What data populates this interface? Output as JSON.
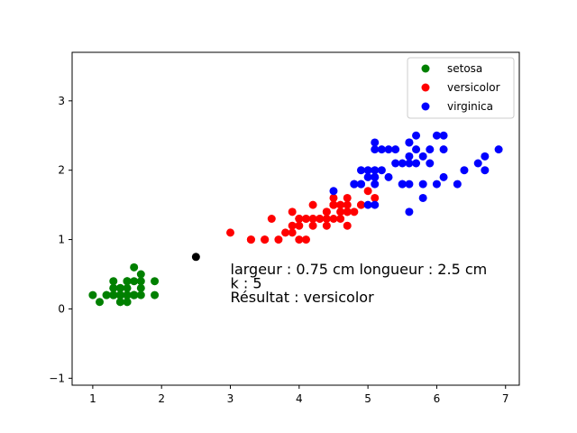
{
  "chart_data": {
    "type": "scatter",
    "title": "",
    "xlabel": "",
    "ylabel": "",
    "xlim": [
      0.7,
      7.2
    ],
    "ylim": [
      -1.1,
      3.7
    ],
    "xticks": [
      1,
      2,
      3,
      4,
      5,
      6,
      7
    ],
    "yticks": [
      -1,
      0,
      1,
      2,
      3
    ],
    "grid": false,
    "legend_position": "top-right",
    "series": [
      {
        "name": "setosa",
        "color": "#008000",
        "points": [
          [
            1.4,
            0.2
          ],
          [
            1.4,
            0.2
          ],
          [
            1.3,
            0.2
          ],
          [
            1.5,
            0.2
          ],
          [
            1.4,
            0.2
          ],
          [
            1.7,
            0.4
          ],
          [
            1.4,
            0.3
          ],
          [
            1.5,
            0.2
          ],
          [
            1.4,
            0.2
          ],
          [
            1.5,
            0.1
          ],
          [
            1.5,
            0.2
          ],
          [
            1.6,
            0.2
          ],
          [
            1.4,
            0.1
          ],
          [
            1.1,
            0.1
          ],
          [
            1.2,
            0.2
          ],
          [
            1.5,
            0.4
          ],
          [
            1.3,
            0.4
          ],
          [
            1.4,
            0.3
          ],
          [
            1.7,
            0.3
          ],
          [
            1.5,
            0.3
          ],
          [
            1.7,
            0.2
          ],
          [
            1.5,
            0.4
          ],
          [
            1.0,
            0.2
          ],
          [
            1.7,
            0.5
          ],
          [
            1.9,
            0.2
          ],
          [
            1.6,
            0.2
          ],
          [
            1.6,
            0.4
          ],
          [
            1.5,
            0.2
          ],
          [
            1.4,
            0.2
          ],
          [
            1.6,
            0.2
          ],
          [
            1.6,
            0.2
          ],
          [
            1.5,
            0.4
          ],
          [
            1.5,
            0.1
          ],
          [
            1.4,
            0.2
          ],
          [
            1.5,
            0.2
          ],
          [
            1.2,
            0.2
          ],
          [
            1.3,
            0.2
          ],
          [
            1.4,
            0.1
          ],
          [
            1.3,
            0.2
          ],
          [
            1.5,
            0.2
          ],
          [
            1.3,
            0.3
          ],
          [
            1.3,
            0.3
          ],
          [
            1.3,
            0.2
          ],
          [
            1.6,
            0.6
          ],
          [
            1.9,
            0.4
          ],
          [
            1.4,
            0.3
          ],
          [
            1.6,
            0.2
          ],
          [
            1.4,
            0.2
          ],
          [
            1.5,
            0.2
          ],
          [
            1.4,
            0.2
          ]
        ]
      },
      {
        "name": "versicolor",
        "color": "#ff0000",
        "points": [
          [
            4.7,
            1.4
          ],
          [
            4.5,
            1.5
          ],
          [
            4.9,
            1.5
          ],
          [
            4.0,
            1.3
          ],
          [
            4.6,
            1.5
          ],
          [
            4.5,
            1.3
          ],
          [
            4.7,
            1.6
          ],
          [
            3.3,
            1.0
          ],
          [
            4.6,
            1.3
          ],
          [
            3.9,
            1.4
          ],
          [
            3.5,
            1.0
          ],
          [
            4.2,
            1.5
          ],
          [
            4.0,
            1.0
          ],
          [
            4.7,
            1.4
          ],
          [
            3.6,
            1.3
          ],
          [
            4.4,
            1.4
          ],
          [
            4.5,
            1.5
          ],
          [
            4.1,
            1.0
          ],
          [
            4.5,
            1.5
          ],
          [
            3.9,
            1.1
          ],
          [
            4.8,
            1.8
          ],
          [
            4.0,
            1.3
          ],
          [
            4.9,
            1.5
          ],
          [
            4.7,
            1.2
          ],
          [
            4.3,
            1.3
          ],
          [
            4.4,
            1.4
          ],
          [
            4.8,
            1.4
          ],
          [
            5.0,
            1.7
          ],
          [
            4.5,
            1.5
          ],
          [
            3.5,
            1.0
          ],
          [
            3.8,
            1.1
          ],
          [
            3.7,
            1.0
          ],
          [
            3.9,
            1.2
          ],
          [
            5.1,
            1.6
          ],
          [
            4.5,
            1.5
          ],
          [
            4.5,
            1.6
          ],
          [
            4.7,
            1.5
          ],
          [
            4.4,
            1.3
          ],
          [
            4.1,
            1.3
          ],
          [
            4.0,
            1.3
          ],
          [
            4.4,
            1.2
          ],
          [
            4.6,
            1.4
          ],
          [
            4.0,
            1.2
          ],
          [
            3.3,
            1.0
          ],
          [
            4.2,
            1.3
          ],
          [
            4.2,
            1.2
          ],
          [
            4.2,
            1.3
          ],
          [
            4.3,
            1.3
          ],
          [
            3.0,
            1.1
          ],
          [
            4.1,
            1.3
          ]
        ]
      },
      {
        "name": "virginica",
        "color": "#0000ff",
        "points": [
          [
            6.0,
            2.5
          ],
          [
            5.1,
            1.9
          ],
          [
            5.9,
            2.1
          ],
          [
            5.6,
            1.8
          ],
          [
            5.8,
            2.2
          ],
          [
            6.6,
            2.1
          ],
          [
            4.5,
            1.7
          ],
          [
            6.3,
            1.8
          ],
          [
            5.8,
            1.8
          ],
          [
            6.1,
            2.5
          ],
          [
            5.1,
            2.0
          ],
          [
            5.3,
            1.9
          ],
          [
            5.5,
            2.1
          ],
          [
            5.0,
            2.0
          ],
          [
            5.1,
            2.4
          ],
          [
            5.3,
            2.3
          ],
          [
            5.5,
            1.8
          ],
          [
            6.7,
            2.2
          ],
          [
            6.9,
            2.3
          ],
          [
            5.0,
            1.5
          ],
          [
            5.7,
            2.3
          ],
          [
            4.9,
            2.0
          ],
          [
            6.7,
            2.0
          ],
          [
            4.9,
            1.8
          ],
          [
            5.7,
            2.1
          ],
          [
            6.0,
            1.8
          ],
          [
            4.8,
            1.8
          ],
          [
            4.9,
            1.8
          ],
          [
            5.6,
            2.1
          ],
          [
            5.8,
            1.6
          ],
          [
            6.1,
            1.9
          ],
          [
            6.4,
            2.0
          ],
          [
            5.6,
            2.2
          ],
          [
            5.1,
            1.5
          ],
          [
            5.6,
            1.4
          ],
          [
            6.1,
            2.3
          ],
          [
            5.6,
            2.4
          ],
          [
            5.5,
            1.8
          ],
          [
            4.8,
            1.8
          ],
          [
            5.4,
            2.1
          ],
          [
            5.6,
            2.4
          ],
          [
            5.1,
            2.3
          ],
          [
            5.1,
            1.9
          ],
          [
            5.9,
            2.3
          ],
          [
            5.7,
            2.5
          ],
          [
            5.2,
            2.3
          ],
          [
            5.0,
            1.9
          ],
          [
            5.2,
            2.0
          ],
          [
            5.4,
            2.3
          ],
          [
            5.1,
            1.8
          ]
        ]
      },
      {
        "name": "",
        "color": "#000000",
        "points": [
          [
            2.5,
            0.75
          ]
        ]
      }
    ],
    "annotations": [
      {
        "text": "largeur : 0.75 cm longueur : 2.5 cm",
        "x": 3.0,
        "y": 0.5
      },
      {
        "text": "k : 5",
        "x": 3.0,
        "y": 0.3
      },
      {
        "text": "Résultat : versicolor",
        "x": 3.0,
        "y": 0.1
      }
    ]
  }
}
